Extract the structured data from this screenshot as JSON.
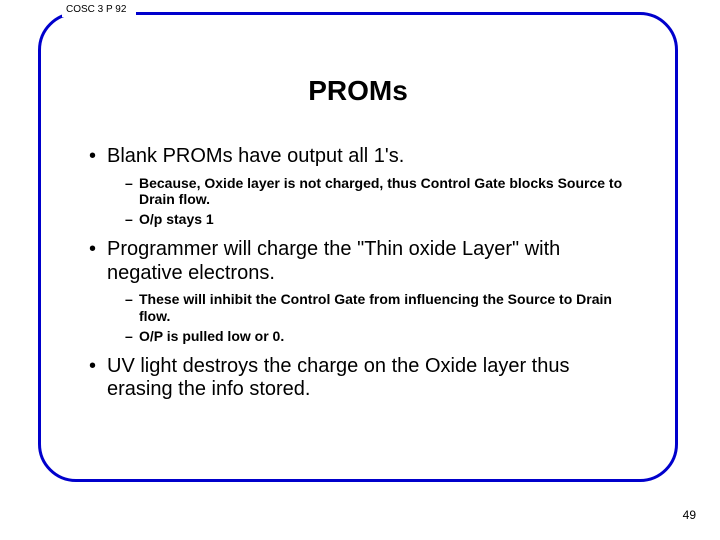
{
  "course_code": "COSC 3 P 92",
  "slide_title": "PROMs",
  "bullets": {
    "b1": "Blank PROMs have output all 1's.",
    "b1_1": "Because, Oxide layer is not charged, thus Control Gate blocks Source to Drain flow.",
    "b1_2": "O/p stays 1",
    "b2": "Programmer will charge the \"Thin oxide Layer\" with negative electrons.",
    "b2_1": "These will inhibit the Control Gate from influencing the Source to Drain flow.",
    "b2_2": "O/P is pulled low or 0.",
    "b3": "UV light destroys the charge on the Oxide layer thus erasing the info stored."
  },
  "page_number": "49",
  "colors": {
    "frame_border": "#0000cc",
    "background": "#ffffff",
    "text": "#000000"
  }
}
